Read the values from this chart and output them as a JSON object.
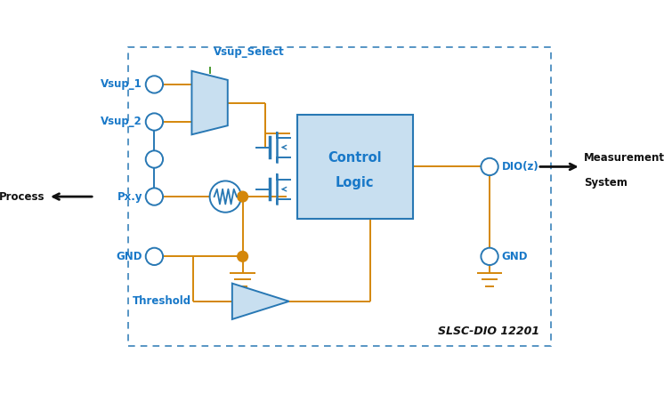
{
  "bg_color": "#ffffff",
  "orange": "#D4870A",
  "blue_dark": "#2878B4",
  "blue_fill": "#C8DFF0",
  "blue_text": "#1878C8",
  "green": "#4A9A30",
  "black": "#111111",
  "labels": {
    "vsup1": "Vsup_1",
    "vsup2": "Vsup_2",
    "vsup_select": "Vsup_Select",
    "pxy": "Px.y",
    "gnd_left": "GND",
    "gnd_right": "GND",
    "dio": "DIO(z)",
    "process": "Process",
    "measurement": "Measurement\nSystem",
    "threshold": "Threshold",
    "control_logic_1": "Control",
    "control_logic_2": "Logic"
  },
  "title": "SLSC-DIO 12201"
}
